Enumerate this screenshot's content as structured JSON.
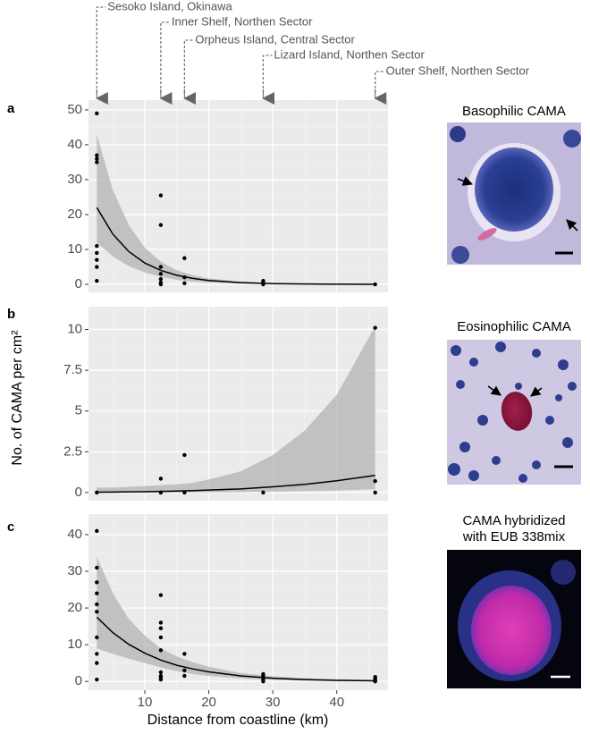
{
  "chart_data": [
    {
      "type": "scatter",
      "panel": "a",
      "x": [
        2.5,
        2.5,
        2.5,
        2.5,
        2.5,
        2.5,
        2.5,
        2.5,
        2.5,
        12.5,
        12.5,
        12.5,
        12.5,
        12.5,
        12.5,
        12.5,
        16.2,
        16.2,
        16.2,
        28.5,
        28.5,
        28.5,
        28.5,
        46
      ],
      "values": [
        49,
        37,
        36,
        35,
        11,
        9,
        7,
        5,
        1,
        25.5,
        17,
        5,
        3,
        1.5,
        0.5,
        0,
        7.5,
        2,
        0.3,
        1,
        0.5,
        0.2,
        0,
        0
      ],
      "fit": {
        "x": [
          2.5,
          5,
          7.5,
          10,
          12.5,
          15,
          17.5,
          20,
          25,
          30,
          35,
          40,
          46
        ],
        "values": [
          22,
          14.4,
          9.4,
          6.1,
          4,
          2.6,
          1.7,
          1.1,
          0.5,
          0.2,
          0.1,
          0.04,
          0.01
        ],
        "lower": [
          12,
          8,
          5.2,
          3.4,
          2.2,
          1.3,
          0.8,
          0.5,
          0.2,
          0.08,
          0.03,
          0.01,
          0
        ],
        "upper": [
          43,
          27,
          17,
          10.5,
          6.5,
          4,
          2.6,
          1.7,
          0.8,
          0.4,
          0.2,
          0.1,
          0.05
        ]
      },
      "xlim": [
        1.2,
        48
      ],
      "ylim": [
        -2.3,
        52.8
      ],
      "xticks": [
        10,
        20,
        30,
        40
      ],
      "yticks": [
        0,
        10,
        20,
        30,
        40,
        50
      ],
      "grid": true
    },
    {
      "type": "scatter",
      "panel": "b",
      "ylabel": "No. of CAMA per cm²",
      "x": [
        2.5,
        12.5,
        12.5,
        16.2,
        16.2,
        28.5,
        46,
        46,
        46
      ],
      "values": [
        0,
        0.85,
        0,
        2.3,
        0,
        0,
        10.1,
        0.7,
        0
      ],
      "fit": {
        "x": [
          2.5,
          5,
          7.5,
          10,
          12.5,
          15,
          17.5,
          20,
          25,
          30,
          35,
          40,
          46
        ],
        "values": [
          0.02,
          0.03,
          0.04,
          0.05,
          0.07,
          0.09,
          0.12,
          0.15,
          0.22,
          0.35,
          0.5,
          0.72,
          1.05
        ],
        "lower": [
          0,
          0,
          0,
          0,
          0,
          0,
          0,
          0.01,
          0.02,
          0.05,
          0.08,
          0.12,
          0.2
        ],
        "upper": [
          0.3,
          0.3,
          0.35,
          0.4,
          0.45,
          0.5,
          0.6,
          0.8,
          1.3,
          2.3,
          3.8,
          6,
          10.2
        ]
      },
      "xlim": [
        1.2,
        48
      ],
      "ylim": [
        -0.5,
        11.4
      ],
      "xticks": [
        10,
        20,
        30,
        40
      ],
      "yticks": [
        0,
        2.5,
        5,
        7.5,
        10
      ],
      "grid": true
    },
    {
      "type": "scatter",
      "panel": "c",
      "xlabel": "Distance from coastline (km)",
      "x": [
        2.5,
        2.5,
        2.5,
        2.5,
        2.5,
        2.5,
        2.5,
        2.5,
        2.5,
        2.5,
        12.5,
        12.5,
        12.5,
        12.5,
        12.5,
        12.5,
        12.5,
        12.5,
        12.5,
        16.2,
        16.2,
        16.2,
        28.5,
        28.5,
        28.5,
        28.5,
        46,
        46,
        46,
        46
      ],
      "values": [
        41,
        31,
        27,
        24,
        21,
        19,
        12,
        7.5,
        5,
        0.5,
        23.5,
        16,
        14.5,
        12,
        8.5,
        2.5,
        1.5,
        1,
        0.5,
        7.5,
        3,
        1.5,
        2,
        1.5,
        0.5,
        0,
        1.2,
        0.7,
        0.3,
        0
      ],
      "fit": {
        "x": [
          2.5,
          5,
          7.5,
          10,
          12.5,
          15,
          17.5,
          20,
          25,
          30,
          35,
          40,
          46
        ],
        "values": [
          17.5,
          13.3,
          10.1,
          7.7,
          5.8,
          4.4,
          3.4,
          2.6,
          1.5,
          0.85,
          0.5,
          0.28,
          0.15
        ],
        "lower": [
          9,
          7.5,
          6.2,
          5,
          3.8,
          2.8,
          2,
          1.5,
          0.8,
          0.4,
          0.2,
          0.1,
          0.05
        ],
        "upper": [
          34,
          24,
          17,
          12.5,
          9,
          6.8,
          5.2,
          4,
          2.3,
          1.4,
          0.9,
          0.6,
          0.4
        ]
      },
      "xlim": [
        1.2,
        48
      ],
      "ylim": [
        -2.4,
        45.6
      ],
      "xticks": [
        10,
        20,
        30,
        40
      ],
      "yticks": [
        0,
        10,
        20,
        30,
        40
      ],
      "grid": true
    }
  ],
  "sites": [
    {
      "label": "Sesoko Island, Okinawa",
      "x": 2.5
    },
    {
      "label": "Inner Shelf, Northen Sector",
      "x": 12.5
    },
    {
      "label": "Orpheus Island, Central Sector",
      "x": 16.2
    },
    {
      "label": "Lizard Island, Northen Sector",
      "x": 28.5
    },
    {
      "label": "Outer Shelf, Northen Sector",
      "x": 46
    }
  ],
  "images": [
    {
      "title_lines": [
        "Basophilic CAMA"
      ]
    },
    {
      "title_lines": [
        "Eosinophilic CAMA"
      ]
    },
    {
      "title_lines": [
        "CAMA hybridized",
        "with EUB 338mix"
      ]
    }
  ]
}
